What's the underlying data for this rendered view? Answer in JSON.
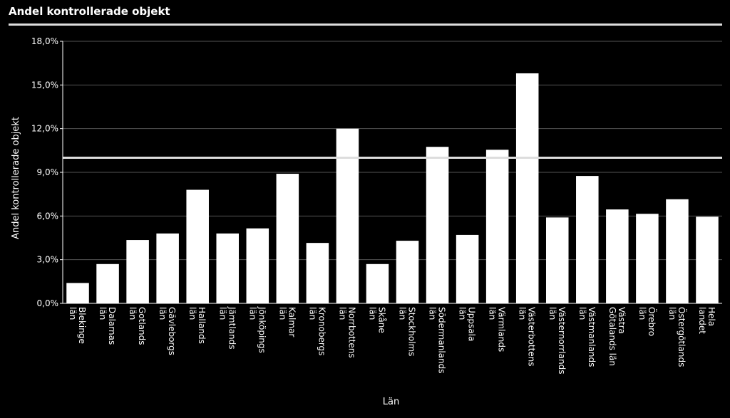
{
  "chart_data": {
    "type": "bar",
    "title": "Andel kontrollerade objekt",
    "xlabel": "Län",
    "ylabel": "Andel kontrollerade objekt",
    "ylim": [
      0,
      18
    ],
    "yticks": [
      "0,0%",
      "3,0%",
      "6,0%",
      "9,0%",
      "12,0%",
      "15,0%",
      "18,0%"
    ],
    "grid": true,
    "reference_line": 10,
    "categories": [
      [
        "Blekinge",
        "län"
      ],
      [
        "Dalarnas",
        "län"
      ],
      [
        "Gotlands",
        "län"
      ],
      [
        "Gävleborgs",
        "län"
      ],
      [
        "Hallands",
        "län"
      ],
      [
        "Jämtlands",
        "län"
      ],
      [
        "Jönköpings",
        "län"
      ],
      [
        "Kalmar",
        "län"
      ],
      [
        "Kronobergs",
        "län"
      ],
      [
        "Norrbottens",
        "län"
      ],
      [
        "Skåne",
        "län"
      ],
      [
        "Stockholms",
        "län"
      ],
      [
        "Södermanlands",
        "län"
      ],
      [
        "Uppsala",
        "län"
      ],
      [
        "Värmlands",
        "län"
      ],
      [
        "Västerbottens",
        "län"
      ],
      [
        "Västernorrlands",
        "län"
      ],
      [
        "Västmanlands",
        "län"
      ],
      [
        "Västra",
        "Götalands län"
      ],
      [
        "Örebro",
        "län"
      ],
      [
        "Östergötlands",
        "län"
      ],
      [
        "Hela",
        "landet"
      ]
    ],
    "values": [
      1.4,
      2.7,
      4.35,
      4.8,
      7.8,
      4.8,
      5.15,
      8.9,
      4.15,
      12.0,
      2.7,
      4.3,
      10.75,
      4.7,
      10.55,
      15.8,
      5.9,
      8.75,
      6.45,
      6.15,
      7.15,
      5.95
    ],
    "colors": {
      "background": "#000000",
      "bar": "#ffffff",
      "grid": "#555555",
      "reference": "#dddddd"
    }
  }
}
